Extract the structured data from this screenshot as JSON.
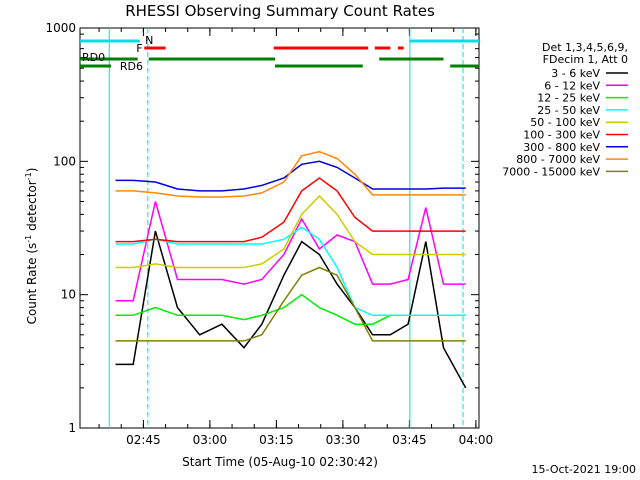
{
  "chart_data": {
    "type": "line",
    "title": "RHESSI Observing Summary Count Rates",
    "xlabel": "Start Time (05-Aug-10 02:30:42)",
    "ylabel_prefix": "Count Rate (s",
    "ylabel_exp": "-1",
    "ylabel_suffix": " detector",
    "ylabel_close": ")",
    "yscale": "log",
    "ylim": [
      1,
      1000
    ],
    "xlim": [
      0,
      90
    ],
    "y_ticks": [
      "1",
      "10",
      "100",
      "1000"
    ],
    "x_ticks": [
      "02:45",
      "03:00",
      "03:15",
      "03:30",
      "03:45",
      "04:00"
    ],
    "x_tick_minutes": [
      14.3,
      29.3,
      44.3,
      59.3,
      74.3,
      89.3
    ],
    "footer_date": "15-Oct-2021 19:00",
    "legend_header": [
      "Det 1,3,4,5,6,9,",
      "FDecim 1, Att 0"
    ],
    "series": [
      {
        "name": "3 - 6 keV",
        "color": "#000000",
        "values": [
          3,
          3,
          30,
          8,
          5,
          6,
          4,
          6,
          14,
          25,
          20,
          12,
          8,
          5,
          5,
          6,
          25,
          4,
          2
        ]
      },
      {
        "name": "6 - 12 keV",
        "color": "#ff00ff",
        "values": [
          9,
          9,
          50,
          13,
          13,
          13,
          12,
          13,
          20,
          37,
          22,
          28,
          25,
          12,
          12,
          13,
          45,
          12,
          12
        ]
      },
      {
        "name": "12 - 25 keV",
        "color": "#00ee00",
        "values": [
          7,
          7,
          8,
          7,
          7,
          7,
          6.5,
          7,
          8,
          10,
          8,
          7,
          6,
          6,
          7,
          7,
          7,
          7,
          7
        ]
      },
      {
        "name": "25 - 50 keV",
        "color": "#00ffff",
        "values": [
          24,
          24,
          26,
          24,
          24,
          24,
          24,
          24,
          26,
          32,
          26,
          16,
          8,
          7,
          7,
          7,
          7,
          7,
          7
        ]
      },
      {
        "name": "50 - 100 keV",
        "color": "#cccc00",
        "values": [
          16,
          16,
          17,
          16,
          16,
          16,
          16,
          17,
          22,
          40,
          55,
          40,
          25,
          20,
          20,
          20,
          20,
          20,
          20
        ]
      },
      {
        "name": "100 - 300 keV",
        "color": "#ff0000",
        "values": [
          25,
          25,
          26,
          25,
          25,
          25,
          25,
          27,
          35,
          60,
          75,
          60,
          38,
          30,
          30,
          30,
          30,
          30,
          30
        ]
      },
      {
        "name": "300 - 800 keV",
        "color": "#0000dd",
        "values": [
          72,
          72,
          70,
          62,
          60,
          60,
          62,
          66,
          75,
          95,
          100,
          90,
          75,
          62,
          62,
          62,
          62,
          63,
          63
        ]
      },
      {
        "name": "800 - 7000 keV",
        "color": "#ff8800",
        "values": [
          60,
          60,
          58,
          55,
          54,
          54,
          55,
          58,
          70,
          110,
          118,
          105,
          80,
          56,
          56,
          56,
          56,
          56,
          56
        ]
      },
      {
        "name": "7000 - 15000 keV",
        "color": "#808000",
        "values": [
          4.5,
          4.5,
          4.5,
          4.5,
          4.5,
          4.5,
          4.5,
          5,
          9,
          14,
          16,
          14,
          8,
          4.5,
          4.5,
          4.5,
          4.5,
          4.5,
          4.5
        ]
      }
    ],
    "series_x_minutes": [
      8,
      12,
      17,
      22,
      27,
      32,
      37,
      41,
      46,
      50,
      54,
      58,
      62,
      66,
      70,
      74,
      78,
      82,
      87
    ],
    "top_bar_labels": {
      "n": "N",
      "f": "F",
      "rd0": "RD0",
      "rd6": "RD6"
    },
    "colors": {
      "axis": "#000000",
      "night": "#00e0e0",
      "flare": "#ff0000",
      "decim": "#008000"
    }
  }
}
